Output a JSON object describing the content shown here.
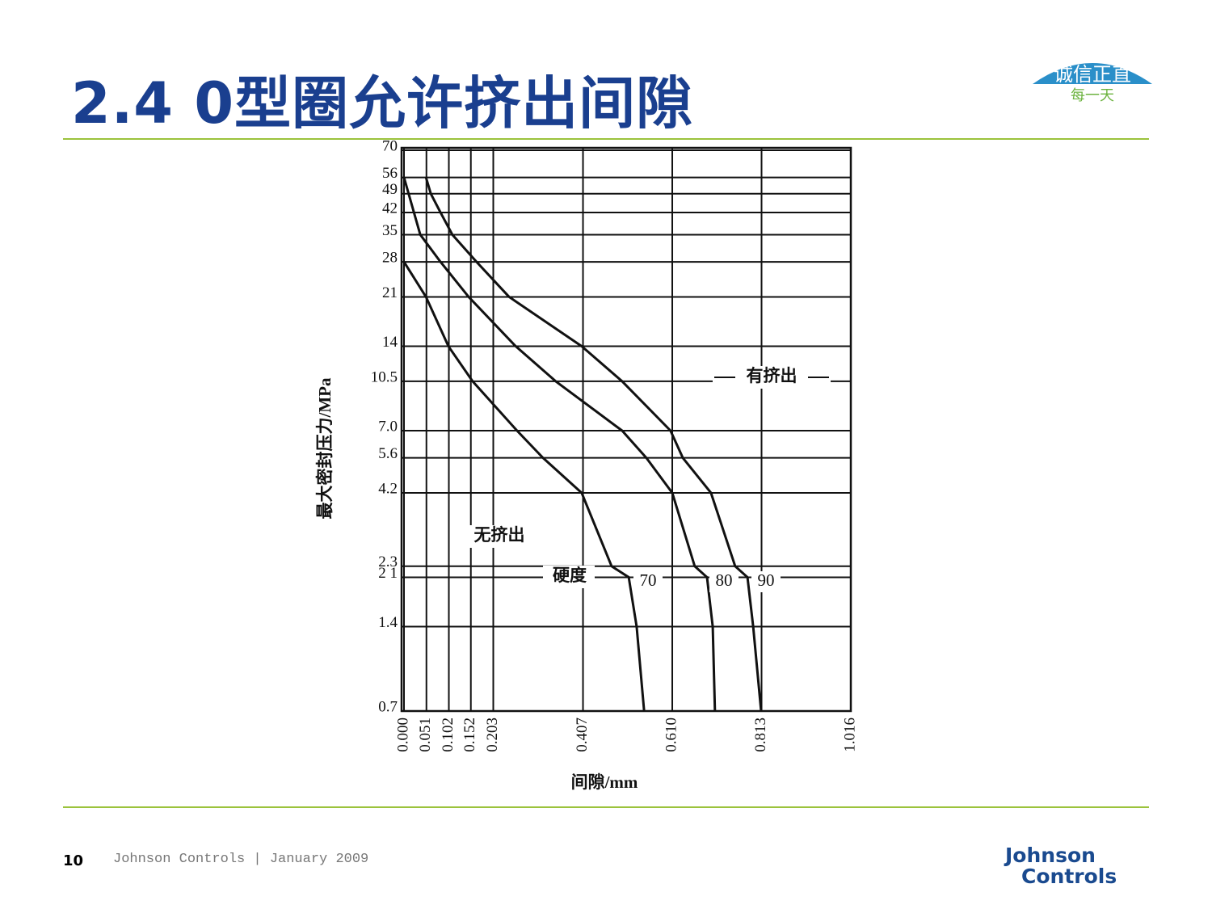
{
  "header": {
    "title": "2.4 0型圈允许挤出间隙",
    "logo_main": "诚信正直",
    "logo_sub": "每一天"
  },
  "chart_data": {
    "type": "line",
    "xlabel": "间隙/mm",
    "ylabel": "最大密封压力/MPa",
    "yscale": "log",
    "grid": true,
    "xlim": [
      0,
      1.016
    ],
    "ylim": [
      0.7,
      70
    ],
    "xticks": [
      {
        "value": 0,
        "label": "0.000"
      },
      0.051,
      0.102,
      0.152,
      0.203,
      0.407,
      {
        "value": 0.61,
        "label": "0.610"
      },
      0.813,
      1.016
    ],
    "yticks": [
      70,
      56,
      49,
      42,
      35,
      28,
      21,
      14,
      10.5,
      {
        "value": 7,
        "label": "7.0"
      },
      5.6,
      4.2,
      2.3,
      {
        "value": 2.1,
        "label": "2 1"
      },
      1.4,
      0.7
    ],
    "legend_title": "硬度",
    "series": [
      {
        "name": "70",
        "color": "#111",
        "x": [
          0,
          0.05,
          0.101,
          0.156,
          0.257,
          0.316,
          0.404,
          0.472,
          0.511,
          0.529,
          0.546
        ],
        "values": [
          28,
          21,
          14,
          10.5,
          7,
          5.6,
          4.2,
          2.3,
          2.1,
          1.4,
          0.7
        ]
      },
      {
        "name": "80",
        "color": "#111",
        "x": [
          0,
          0.037,
          0.083,
          0.147,
          0.254,
          0.345,
          0.496,
          0.551,
          0.61,
          0.661,
          0.689,
          0.702,
          0.707
        ],
        "values": [
          56,
          35,
          28,
          21,
          14,
          10.5,
          7,
          5.6,
          4.2,
          2.3,
          2.1,
          1.4,
          0.7
        ]
      },
      {
        "name": "90",
        "color": "#111",
        "x": [
          0.05,
          0.061,
          0.083,
          0.11,
          0.165,
          0.239,
          0.404,
          0.496,
          0.606,
          0.634,
          0.698,
          0.753,
          0.781,
          0.794,
          0.812
        ],
        "values": [
          56,
          49,
          42,
          35,
          28,
          21,
          14,
          10.5,
          7,
          5.6,
          4.2,
          2.3,
          2.1,
          1.4,
          0.7
        ]
      }
    ],
    "annotations": [
      "有挤出",
      "无挤出"
    ]
  },
  "footer": {
    "page": "10",
    "text": "Johnson Controls | January 2009",
    "logo": [
      "Johnson",
      "Controls"
    ]
  }
}
